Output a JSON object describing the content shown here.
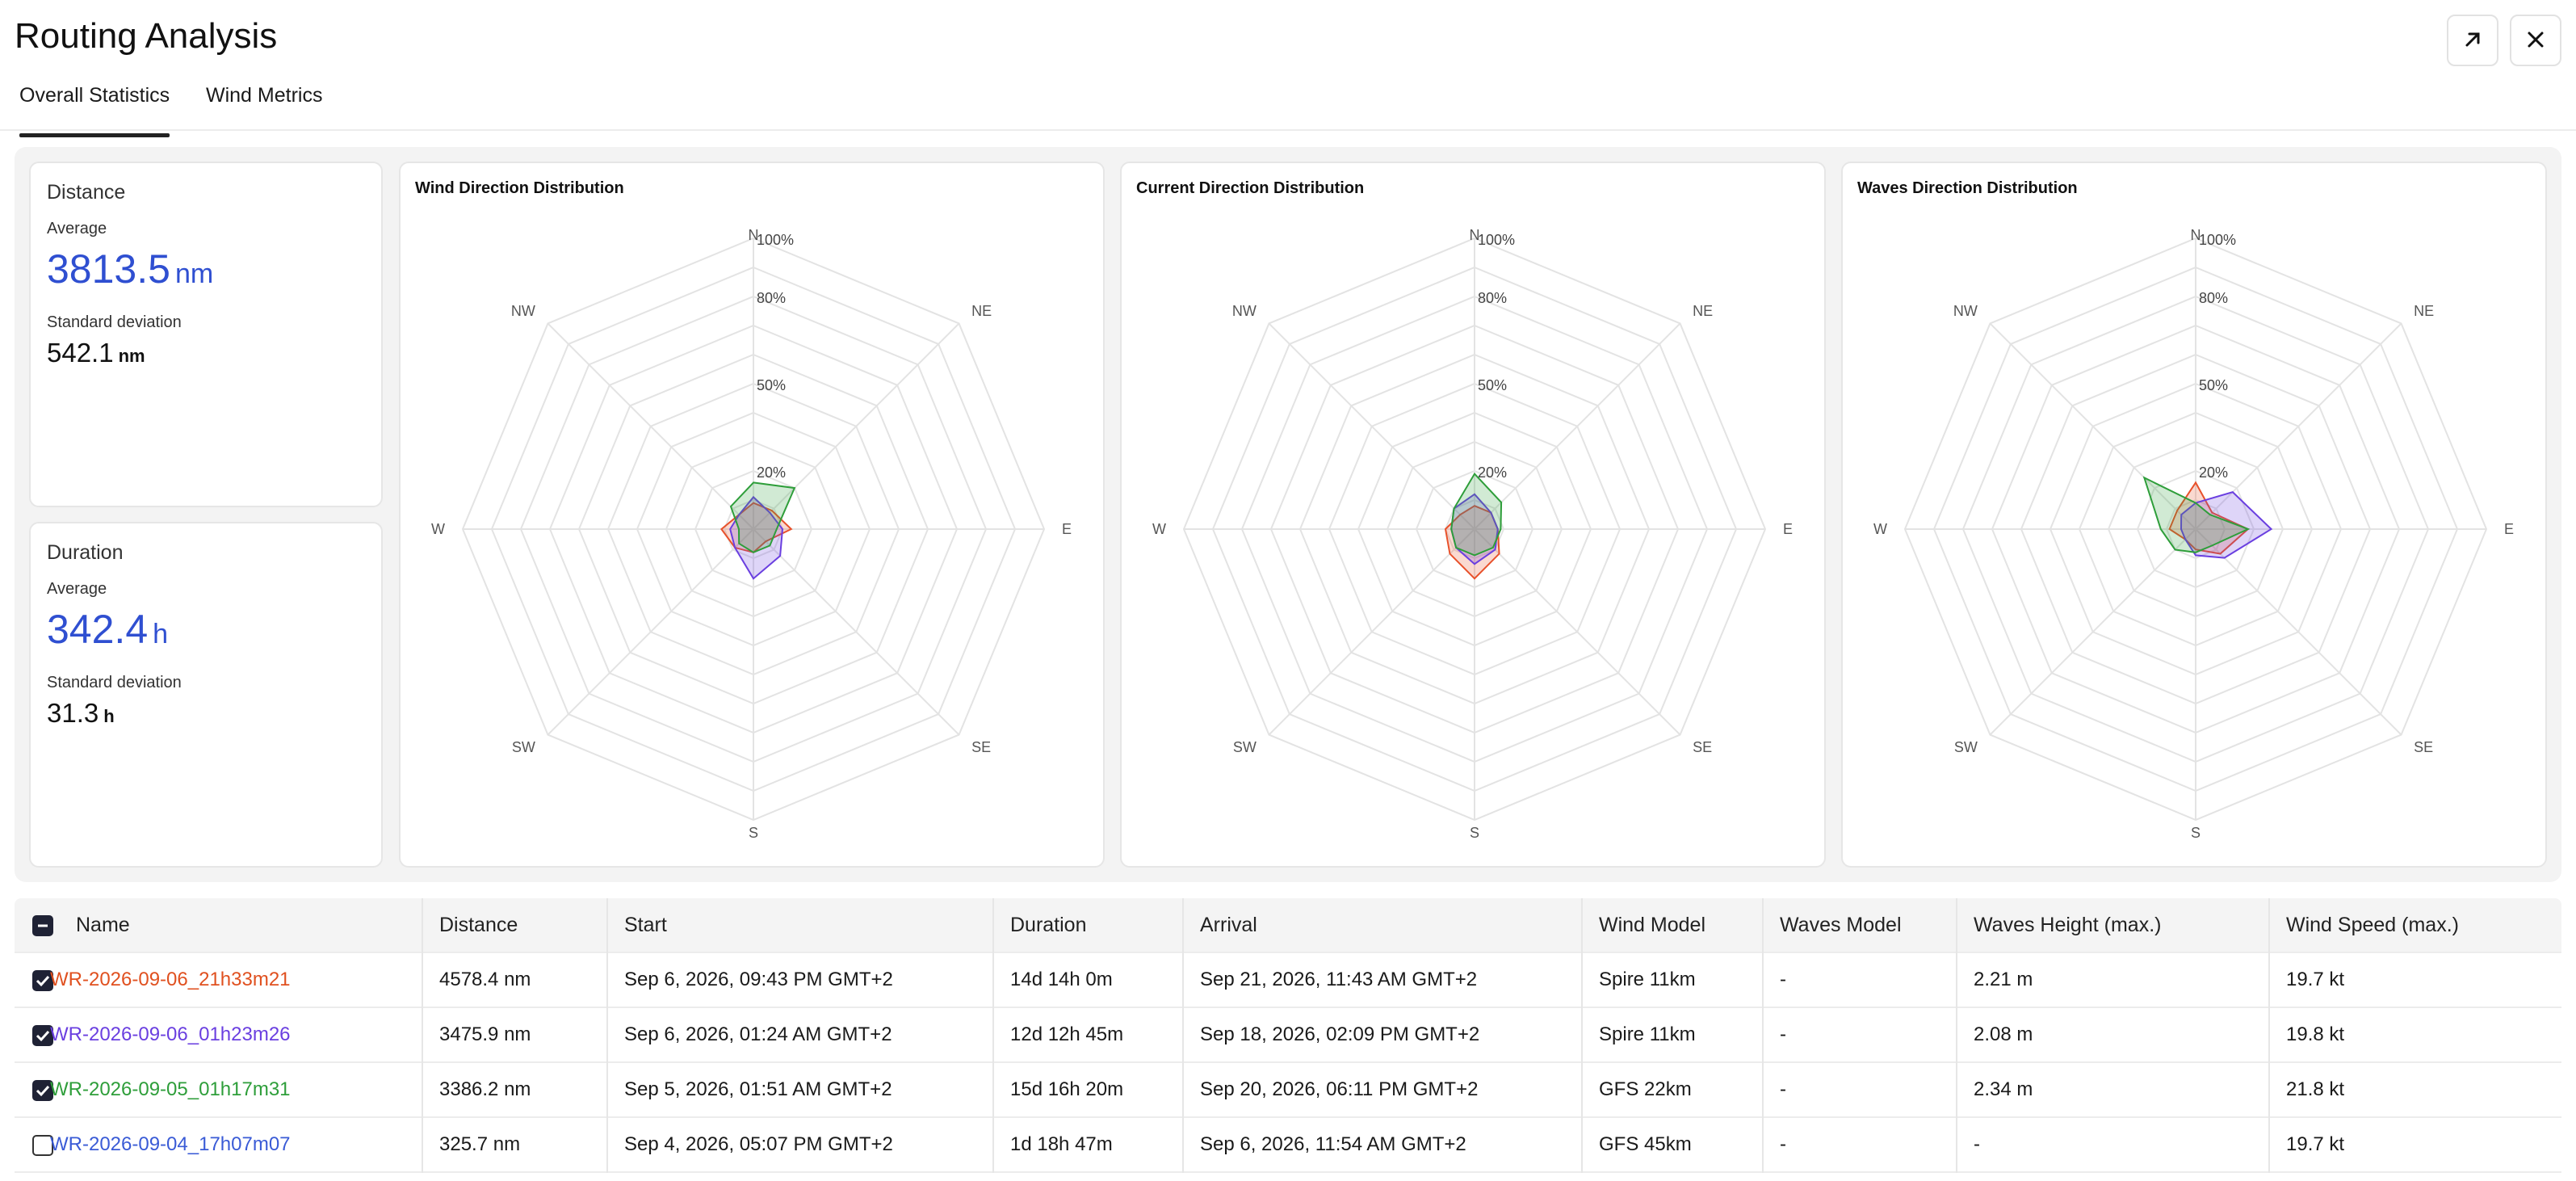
{
  "header": {
    "title": "Routing Analysis",
    "expand_icon": "arrow-up-right-icon",
    "close_icon": "close-icon"
  },
  "tabs": [
    {
      "label": "Overall Statistics",
      "active": true
    },
    {
      "label": "Wind Metrics",
      "active": false
    }
  ],
  "stats": {
    "distance": {
      "title": "Distance",
      "avg_label": "Average",
      "avg_value": "3813.5",
      "avg_unit": "nm",
      "sd_label": "Standard deviation",
      "sd_value": "542.1",
      "sd_unit": "nm"
    },
    "duration": {
      "title": "Duration",
      "avg_label": "Average",
      "avg_value": "342.4",
      "avg_unit": "h",
      "sd_label": "Standard deviation",
      "sd_value": "31.3",
      "sd_unit": "h"
    }
  },
  "chart_data": [
    {
      "type": "radar",
      "title": "Wind Direction Distribution",
      "axes": [
        "N",
        "NE",
        "E",
        "SE",
        "S",
        "SW",
        "W",
        "NW"
      ],
      "ring_labels": [
        "20%",
        "50%",
        "80%",
        "100%"
      ],
      "ring_values": [
        20,
        50,
        80,
        100
      ],
      "series": [
        {
          "color": "#e8512b",
          "values": [
            9,
            9,
            13,
            6,
            8,
            9,
            11,
            7
          ]
        },
        {
          "color": "#6a3fe0",
          "values": [
            11,
            8,
            10,
            13,
            17,
            9,
            8,
            7
          ]
        },
        {
          "color": "#2e9e3a",
          "values": [
            16,
            20,
            8,
            8,
            8,
            7,
            5,
            11
          ]
        }
      ]
    },
    {
      "type": "radar",
      "title": "Current Direction Distribution",
      "axes": [
        "N",
        "NE",
        "E",
        "SE",
        "S",
        "SW",
        "W",
        "NW"
      ],
      "ring_labels": [
        "20%",
        "50%",
        "80%",
        "100%"
      ],
      "ring_values": [
        20,
        50,
        80,
        100
      ],
      "series": [
        {
          "color": "#e8512b",
          "values": [
            8,
            8,
            8,
            12,
            17,
            12,
            10,
            7
          ]
        },
        {
          "color": "#6a3fe0",
          "values": [
            12,
            8,
            8,
            10,
            12,
            9,
            8,
            10
          ]
        },
        {
          "color": "#2e9e3a",
          "values": [
            19,
            13,
            9,
            9,
            9,
            9,
            8,
            10
          ]
        }
      ]
    },
    {
      "type": "radar",
      "title": "Waves Direction Distribution",
      "axes": [
        "N",
        "NE",
        "E",
        "SE",
        "S",
        "SW",
        "W",
        "NW"
      ],
      "ring_labels": [
        "20%",
        "50%",
        "80%",
        "100%"
      ],
      "ring_values": [
        20,
        50,
        80,
        100
      ],
      "series": [
        {
          "color": "#e8512b",
          "values": [
            16,
            8,
            18,
            12,
            7,
            5,
            9,
            9
          ]
        },
        {
          "color": "#6a3fe0",
          "values": [
            9,
            18,
            26,
            14,
            9,
            5,
            5,
            7
          ]
        },
        {
          "color": "#2e9e3a",
          "values": [
            9,
            7,
            18,
            8,
            8,
            10,
            12,
            25
          ]
        }
      ]
    }
  ],
  "table": {
    "columns": [
      "Name",
      "Distance",
      "Start",
      "Duration",
      "Arrival",
      "Wind Model",
      "Waves Model",
      "Waves Height (max.)",
      "Wind Speed (max.)"
    ],
    "rows": [
      {
        "checked": true,
        "color": "#e0501f",
        "name": "WR-2026-09-06_21h33m21",
        "distance": "4578.4 nm",
        "start": "Sep 6, 2026, 09:43 PM GMT+2",
        "duration": "14d 14h 0m",
        "arrival": "Sep 21, 2026, 11:43 AM GMT+2",
        "wind_model": "Spire 11km",
        "waves_model": "-",
        "waves_height": "2.21 m",
        "wind_speed": "19.7 kt"
      },
      {
        "checked": true,
        "color": "#6a3fe0",
        "name": "WR-2026-09-06_01h23m26",
        "distance": "3475.9 nm",
        "start": "Sep 6, 2026, 01:24 AM GMT+2",
        "duration": "12d 12h 45m",
        "arrival": "Sep 18, 2026, 02:09 PM GMT+2",
        "wind_model": "Spire 11km",
        "waves_model": "-",
        "waves_height": "2.08 m",
        "wind_speed": "19.8 kt"
      },
      {
        "checked": true,
        "color": "#2e9e3a",
        "name": "WR-2026-09-05_01h17m31",
        "distance": "3386.2 nm",
        "start": "Sep 5, 2026, 01:51 AM GMT+2",
        "duration": "15d 16h 20m",
        "arrival": "Sep 20, 2026, 06:11 PM GMT+2",
        "wind_model": "GFS 22km",
        "waves_model": "-",
        "waves_height": "2.34 m",
        "wind_speed": "21.8 kt"
      },
      {
        "checked": false,
        "color": "#3a5bd6",
        "name": "WR-2026-09-04_17h07m07",
        "distance": "325.7 nm",
        "start": "Sep 4, 2026, 05:07 PM GMT+2",
        "duration": "1d 18h 47m",
        "arrival": "Sep 6, 2026, 11:54 AM GMT+2",
        "wind_model": "GFS 45km",
        "waves_model": "-",
        "waves_height": "-",
        "wind_speed": "19.7 kt"
      }
    ]
  }
}
